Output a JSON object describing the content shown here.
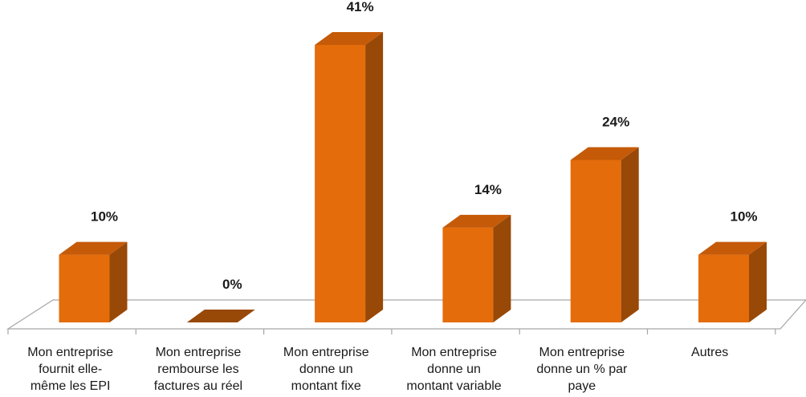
{
  "chart_data": {
    "type": "bar",
    "title": "",
    "xlabel": "",
    "ylabel": "",
    "ylim": [
      0,
      41
    ],
    "grid": false,
    "legend": "none",
    "categories": [
      [
        "Mon entreprise",
        "fournit elle-",
        "même les EPI"
      ],
      [
        "Mon entreprise",
        "rembourse les",
        "factures au réel"
      ],
      [
        "Mon entreprise",
        "donne un",
        "montant fixe"
      ],
      [
        "Mon entreprise",
        "donne un",
        "montant variable"
      ],
      [
        "Mon entreprise",
        "donne un % par",
        "paye"
      ],
      [
        "Autres"
      ]
    ],
    "values": [
      10,
      0,
      41,
      14,
      24,
      10
    ],
    "value_labels": [
      "10%",
      "0%",
      "41%",
      "14%",
      "24%",
      "10%"
    ],
    "colors": {
      "front": "#e46c0a",
      "side": "#984807",
      "top": "#c55a08",
      "floor_line": "#a6a6a6"
    }
  }
}
